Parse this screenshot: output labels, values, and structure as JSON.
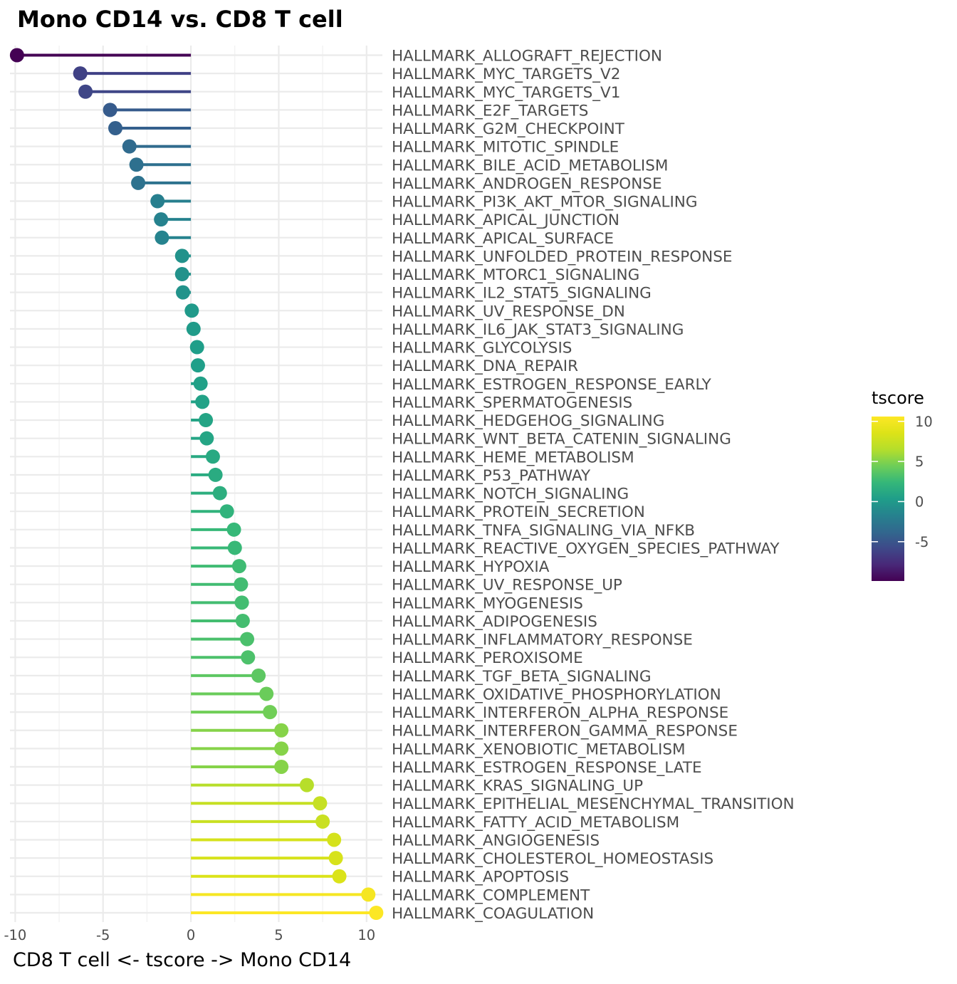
{
  "chart_data": {
    "type": "lollipop",
    "title": "Mono CD14 vs. CD8 T cell",
    "xlabel": "CD8 T cell <- tscore -> Mono CD14",
    "ylabel": "",
    "xlim": [
      -10.3,
      10.9
    ],
    "x_ticks": [
      -10,
      -5,
      0,
      5,
      10
    ],
    "x_tick_labels": [
      "-10",
      "-5",
      "0",
      "5",
      "10"
    ],
    "grid": true,
    "legend": {
      "title": "tscore",
      "position": "right",
      "colormap": "viridis",
      "range": [
        -9.9,
        10.6
      ],
      "ticks": [
        10,
        5,
        0,
        -5
      ],
      "tick_labels": [
        "10",
        "5",
        "0",
        "-5"
      ]
    },
    "categories": [
      "HALLMARK_ALLOGRAFT_REJECTION",
      "HALLMARK_MYC_TARGETS_V2",
      "HALLMARK_MYC_TARGETS_V1",
      "HALLMARK_E2F_TARGETS",
      "HALLMARK_G2M_CHECKPOINT",
      "HALLMARK_MITOTIC_SPINDLE",
      "HALLMARK_BILE_ACID_METABOLISM",
      "HALLMARK_ANDROGEN_RESPONSE",
      "HALLMARK_PI3K_AKT_MTOR_SIGNALING",
      "HALLMARK_APICAL_JUNCTION",
      "HALLMARK_APICAL_SURFACE",
      "HALLMARK_UNFOLDED_PROTEIN_RESPONSE",
      "HALLMARK_MTORC1_SIGNALING",
      "HALLMARK_IL2_STAT5_SIGNALING",
      "HALLMARK_UV_RESPONSE_DN",
      "HALLMARK_IL6_JAK_STAT3_SIGNALING",
      "HALLMARK_GLYCOLYSIS",
      "HALLMARK_DNA_REPAIR",
      "HALLMARK_ESTROGEN_RESPONSE_EARLY",
      "HALLMARK_SPERMATOGENESIS",
      "HALLMARK_HEDGEHOG_SIGNALING",
      "HALLMARK_WNT_BETA_CATENIN_SIGNALING",
      "HALLMARK_HEME_METABOLISM",
      "HALLMARK_P53_PATHWAY",
      "HALLMARK_NOTCH_SIGNALING",
      "HALLMARK_PROTEIN_SECRETION",
      "HALLMARK_TNFA_SIGNALING_VIA_NFKB",
      "HALLMARK_REACTIVE_OXYGEN_SPECIES_PATHWAY",
      "HALLMARK_HYPOXIA",
      "HALLMARK_UV_RESPONSE_UP",
      "HALLMARK_MYOGENESIS",
      "HALLMARK_ADIPOGENESIS",
      "HALLMARK_INFLAMMATORY_RESPONSE",
      "HALLMARK_PEROXISOME",
      "HALLMARK_TGF_BETA_SIGNALING",
      "HALLMARK_OXIDATIVE_PHOSPHORYLATION",
      "HALLMARK_INTERFERON_ALPHA_RESPONSE",
      "HALLMARK_INTERFERON_GAMMA_RESPONSE",
      "HALLMARK_XENOBIOTIC_METABOLISM",
      "HALLMARK_ESTROGEN_RESPONSE_LATE",
      "HALLMARK_KRAS_SIGNALING_UP",
      "HALLMARK_EPITHELIAL_MESENCHYMAL_TRANSITION",
      "HALLMARK_FATTY_ACID_METABOLISM",
      "HALLMARK_ANGIOGENESIS",
      "HALLMARK_CHOLESTEROL_HOMEOSTASIS",
      "HALLMARK_APOPTOSIS",
      "HALLMARK_COMPLEMENT",
      "HALLMARK_COAGULATION"
    ],
    "values": [
      -9.9,
      -6.3,
      -6.0,
      -4.6,
      -4.3,
      -3.5,
      -3.1,
      -3.0,
      -1.9,
      -1.7,
      -1.65,
      -0.5,
      -0.5,
      -0.45,
      0.05,
      0.15,
      0.35,
      0.4,
      0.55,
      0.65,
      0.85,
      0.9,
      1.25,
      1.4,
      1.65,
      2.05,
      2.45,
      2.5,
      2.75,
      2.85,
      2.9,
      2.95,
      3.2,
      3.25,
      3.85,
      4.3,
      4.5,
      5.15,
      5.15,
      5.15,
      6.6,
      7.35,
      7.5,
      8.15,
      8.25,
      8.45,
      10.1,
      10.55
    ]
  }
}
